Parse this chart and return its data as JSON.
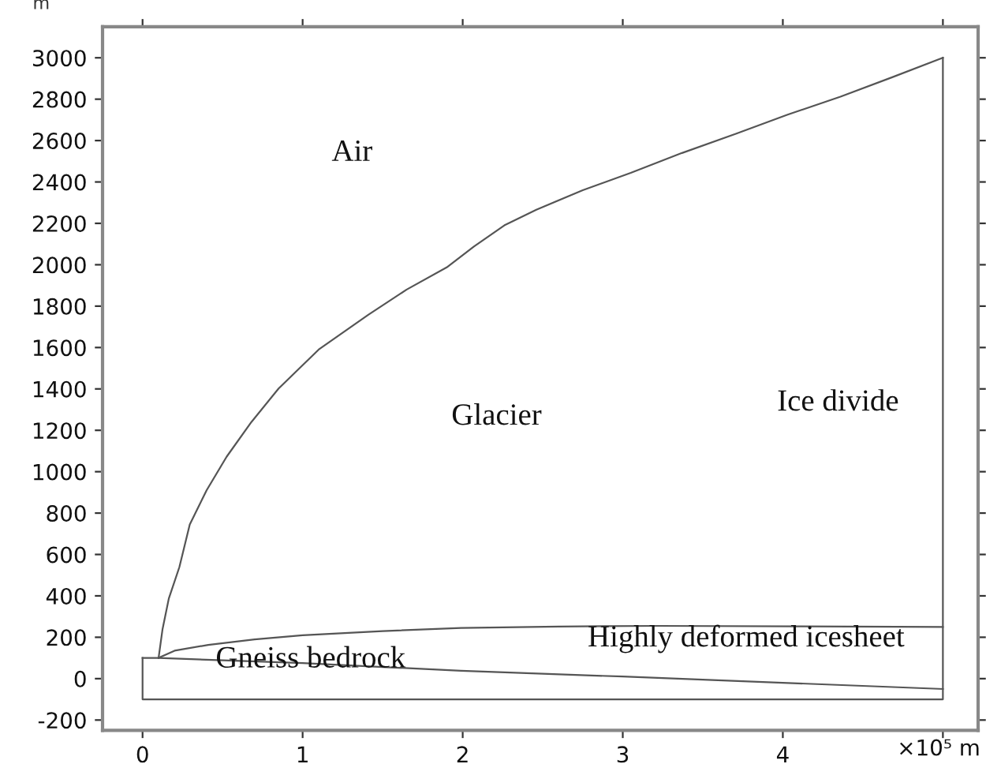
{
  "chart_data": {
    "type": "line",
    "ylabel": "m",
    "xlabel": "×10⁵ m",
    "series": [
      {
        "color": "#555555",
        "x": [
          0.1,
          0.125,
          0.164,
          0.23,
          0.295,
          0.4,
          0.525,
          0.68,
          0.85,
          1.1,
          1.41,
          1.65,
          1.9,
          2.07,
          2.26,
          2.46,
          2.75,
          3.05,
          3.37,
          3.71,
          4.03,
          4.36,
          4.68,
          5.0
        ],
        "values": [
          100,
          240,
          387,
          539,
          745,
          910,
          1072,
          1240,
          1402,
          1590,
          1758,
          1880,
          1987,
          2088,
          2190,
          2266,
          2360,
          2444,
          2540,
          2634,
          2725,
          2812,
          2905,
          3000
        ]
      },
      {
        "color": "#555555",
        "x": [
          0.1,
          0.2,
          0.41,
          0.7,
          1.0,
          1.5,
          1.99,
          2.6,
          3.22,
          4.1,
          5.0
        ],
        "values": [
          100,
          135,
          163,
          190,
          210,
          230,
          245,
          252,
          255,
          253,
          250
        ]
      },
      {
        "color": "#555555",
        "x": [
          0,
          0.1,
          1.0,
          1.99,
          3.0,
          4.0,
          5.0
        ],
        "values": [
          100,
          100,
          75,
          38,
          10,
          -20,
          -50
        ]
      },
      {
        "color": "#555555",
        "x": [
          0,
          0,
          5.0,
          5.0
        ],
        "values": [
          100,
          -100,
          -100,
          3000
        ]
      }
    ],
    "annotations": [
      "Air",
      "Glacier",
      "Ice divide",
      {
        "text": "Gneiss bedrock",
        "x": 1.05,
        "y": 90
      },
      "Highly deformed icesheet"
    ],
    "xlim": [
      -0.25,
      5.22
    ],
    "ylim": [
      -250,
      3150
    ],
    "xticks": [
      0,
      1,
      2,
      3,
      4,
      {
        "value": 5,
        "label": null
      }
    ],
    "yticks": [
      -200,
      0,
      200,
      400,
      600,
      800,
      1000,
      1200,
      1400,
      1600,
      1800,
      2000,
      2200,
      2400,
      2600,
      2800,
      3000
    ],
    "grid": false,
    "marker": "none",
    "line_style": "solid"
  }
}
